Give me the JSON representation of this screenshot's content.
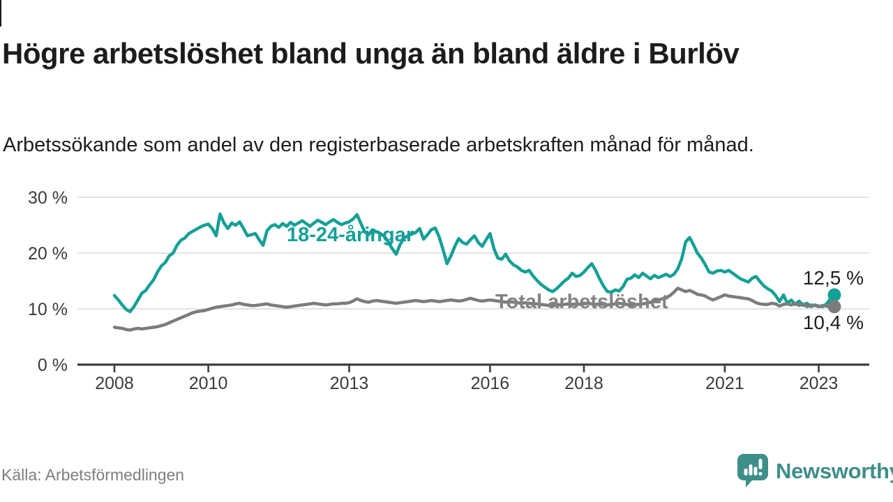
{
  "title": "Högre arbetslöshet bland unga än bland äldre i Burlöv",
  "subtitle": "Arbetssökande som andel av den registerbaserade arbetskraften månad för månad.",
  "source": "Källa: Arbetsförmedlingen",
  "logo": {
    "text": "Newsworthy",
    "icon": "newsworthy-speech-bubble-bar-chart-icon"
  },
  "colors": {
    "youth_line": "#14a096",
    "total_line": "#7c7c7c",
    "total_label_text": "#828282",
    "end_label_text": "#1f1f1f",
    "grid": "#d8d8d8",
    "axis": "#3d3d3d",
    "tick_text": "#3b3b3b",
    "logo_teal": "#3e8e89",
    "title_text": "#1c1c1a",
    "source_text": "#7e7e7e"
  },
  "chart_data": {
    "type": "line",
    "unit": "%",
    "frequency": "monthly",
    "start": {
      "year": 2008,
      "month": 1
    },
    "end": {
      "year": 2023,
      "month": 5
    },
    "ylim": [
      0,
      30
    ],
    "yticks": [
      0,
      10,
      20,
      30
    ],
    "ytick_labels": [
      "0 %",
      "10 %",
      "20 %",
      "30 %"
    ],
    "xticks": [
      2008,
      2010,
      2013,
      2016,
      2018,
      2021,
      2023
    ],
    "grid": "horizontal",
    "legend_position": "inline-annotations",
    "series": [
      {
        "name": "18-24-åringar",
        "color": "#14a096",
        "end_value": 12.5,
        "end_label": "12,5 %",
        "values": [
          12.4,
          11.6,
          10.7,
          9.9,
          9.5,
          10.4,
          11.6,
          12.8,
          13.3,
          14.3,
          15.2,
          16.6,
          17.7,
          18.3,
          19.5,
          20.0,
          21.4,
          22.3,
          22.7,
          23.5,
          23.9,
          24.3,
          24.7,
          25.0,
          25.2,
          24.4,
          23.1,
          27.0,
          25.4,
          24.4,
          25.4,
          25.0,
          25.6,
          24.4,
          23.1,
          23.3,
          23.5,
          22.4,
          21.4,
          24.0,
          24.8,
          25.1,
          24.6,
          25.3,
          24.8,
          25.5,
          25.0,
          25.4,
          25.8,
          25.3,
          24.8,
          25.4,
          25.9,
          25.5,
          25.1,
          25.6,
          26.0,
          25.5,
          25.1,
          25.4,
          25.6,
          26.1,
          26.9,
          25.3,
          23.8,
          23.3,
          24.2,
          23.8,
          23.5,
          23.0,
          22.0,
          20.8,
          19.8,
          21.5,
          22.7,
          23.1,
          23.4,
          23.7,
          24.4,
          22.5,
          23.3,
          24.2,
          24.5,
          22.9,
          20.6,
          18.1,
          19.5,
          21.2,
          22.6,
          21.9,
          21.6,
          22.4,
          23.1,
          21.9,
          21.2,
          22.4,
          23.5,
          20.8,
          19.1,
          18.9,
          19.8,
          18.6,
          17.9,
          17.5,
          16.9,
          16.6,
          16.9,
          15.9,
          15.1,
          14.4,
          13.9,
          13.4,
          13.1,
          13.6,
          14.3,
          15.0,
          15.5,
          16.4,
          15.8,
          16.0,
          16.6,
          17.4,
          18.1,
          16.9,
          15.4,
          14.1,
          13.1,
          13.0,
          13.4,
          13.2,
          14.0,
          15.3,
          15.5,
          16.1,
          15.6,
          16.4,
          15.9,
          15.4,
          16.0,
          15.6,
          15.9,
          16.2,
          15.8,
          16.2,
          17.2,
          19.0,
          22.0,
          22.8,
          21.5,
          20.0,
          19.1,
          17.9,
          16.6,
          16.4,
          16.8,
          16.9,
          16.6,
          16.9,
          16.4,
          15.9,
          15.4,
          15.1,
          14.8,
          15.5,
          15.8,
          14.9,
          14.1,
          13.6,
          13.2,
          12.4,
          11.3,
          12.5,
          11.0,
          11.6,
          10.8,
          11.4,
          10.6,
          11.0,
          10.4,
          10.7,
          10.5,
          10.4,
          10.9,
          11.8,
          12.5
        ]
      },
      {
        "name": "Total arbetslöshet",
        "color": "#7c7c7c",
        "end_value": 10.4,
        "end_label": "10,4 %",
        "values": [
          6.7,
          6.6,
          6.5,
          6.3,
          6.2,
          6.4,
          6.5,
          6.4,
          6.5,
          6.6,
          6.7,
          6.8,
          7.0,
          7.2,
          7.5,
          7.8,
          8.1,
          8.4,
          8.7,
          9.0,
          9.3,
          9.5,
          9.6,
          9.7,
          9.9,
          10.1,
          10.3,
          10.4,
          10.5,
          10.6,
          10.7,
          10.9,
          11.0,
          10.8,
          10.7,
          10.6,
          10.6,
          10.7,
          10.8,
          10.9,
          10.7,
          10.6,
          10.5,
          10.4,
          10.3,
          10.4,
          10.5,
          10.6,
          10.7,
          10.8,
          10.9,
          11.0,
          10.9,
          10.8,
          10.7,
          10.8,
          10.9,
          10.9,
          11.0,
          11.0,
          11.1,
          11.4,
          11.8,
          11.5,
          11.3,
          11.2,
          11.4,
          11.5,
          11.4,
          11.3,
          11.2,
          11.1,
          11.0,
          11.1,
          11.2,
          11.3,
          11.4,
          11.5,
          11.4,
          11.3,
          11.4,
          11.5,
          11.4,
          11.3,
          11.4,
          11.5,
          11.6,
          11.5,
          11.4,
          11.5,
          11.7,
          11.9,
          11.7,
          11.5,
          11.4,
          11.5,
          11.6,
          11.5,
          11.4,
          11.3,
          11.2,
          11.3,
          11.2,
          11.1,
          11.0,
          11.1,
          11.0,
          10.9,
          10.9,
          10.8,
          10.7,
          10.6,
          10.7,
          10.8,
          10.7,
          10.8,
          10.9,
          10.8,
          10.9,
          10.8,
          10.9,
          11.0,
          10.9,
          10.8,
          10.9,
          10.8,
          10.7,
          10.8,
          10.9,
          11.0,
          10.9,
          10.8,
          10.7,
          10.8,
          10.8,
          10.9,
          11.0,
          11.2,
          11.4,
          11.6,
          11.8,
          12.0,
          12.4,
          13.0,
          13.7,
          13.4,
          13.1,
          13.3,
          13.0,
          12.6,
          12.5,
          12.3,
          11.9,
          11.6,
          11.9,
          12.2,
          12.5,
          12.3,
          12.2,
          12.1,
          12.0,
          11.9,
          11.8,
          11.5,
          11.1,
          10.9,
          10.8,
          10.8,
          11.0,
          10.9,
          10.5,
          10.8,
          10.9,
          10.7,
          11.0,
          10.6,
          10.9,
          10.4,
          10.7,
          10.6,
          10.4,
          10.6,
          10.5,
          10.3,
          10.4
        ]
      }
    ]
  }
}
